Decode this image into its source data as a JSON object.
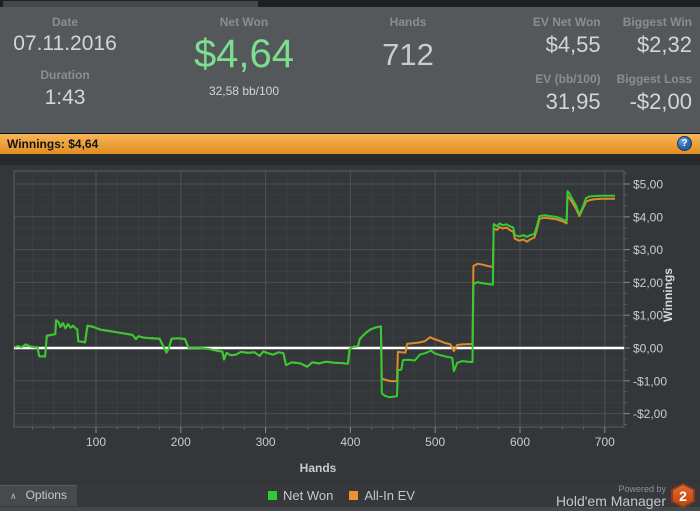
{
  "stats_panel": {
    "date": {
      "label": "Date",
      "value": "07.11.2016"
    },
    "duration": {
      "label": "Duration",
      "value": "1:43"
    },
    "net_won": {
      "label": "Net Won",
      "value": "$4,64",
      "sub": "32,58 bb/100"
    },
    "hands": {
      "label": "Hands",
      "value": "712"
    },
    "ev_net_won": {
      "label": "EV Net Won",
      "value": "$4,55"
    },
    "biggest_win": {
      "label": "Biggest Win",
      "value": "$2,32"
    },
    "ev_bb100": {
      "label": "EV (bb/100)",
      "value": "31,95"
    },
    "biggest_loss": {
      "label": "Biggest Loss",
      "value": "-$2,00"
    }
  },
  "winnings_bar": {
    "label": "Winnings:",
    "value": "$4,64",
    "help_glyph": "?"
  },
  "colors": {
    "accent_orange_bar": "#EDA13C",
    "positive_green_text": "#7CDE8E",
    "chart_background": "#34373A",
    "zero_line": "#FFFFFF",
    "net_won_line": "#33CC33",
    "all_in_ev_line": "#E08A28"
  },
  "chart_data": {
    "type": "line",
    "title": "Winnings: $4,64",
    "xlabel": "Hands",
    "ylabel": "Winnings",
    "xlim": [
      0,
      721
    ],
    "ylim": [
      -2.4,
      5.4
    ],
    "grid": true,
    "zero_line": true,
    "legend_position": "bottom",
    "x_ticks": [
      {
        "value": 100,
        "label": "100"
      },
      {
        "value": 200,
        "label": "200"
      },
      {
        "value": 300,
        "label": "300"
      },
      {
        "value": 400,
        "label": "400"
      },
      {
        "value": 500,
        "label": "500"
      },
      {
        "value": 600,
        "label": "600"
      },
      {
        "value": 700,
        "label": "700"
      }
    ],
    "y_ticks": [
      {
        "value": 5,
        "label": "$5,00"
      },
      {
        "value": 4,
        "label": "$4,00"
      },
      {
        "value": 3,
        "label": "$3,00"
      },
      {
        "value": 2,
        "label": "$2,00"
      },
      {
        "value": 1,
        "label": "$1,00"
      },
      {
        "value": 0,
        "label": "$0,00"
      },
      {
        "value": -1,
        "label": "-$1,00"
      },
      {
        "value": -2,
        "label": "-$2,00"
      }
    ],
    "series": [
      {
        "name": "All-In EV",
        "color": "#E08A28",
        "points": [
          [
            4,
            0.02
          ],
          [
            8,
            0.06
          ],
          [
            12,
            0.02
          ],
          [
            17,
            0.11
          ],
          [
            22,
            0.05
          ],
          [
            28,
            0.02
          ],
          [
            31,
            0.02
          ],
          [
            33,
            -0.25
          ],
          [
            40,
            -0.26
          ],
          [
            42,
            0.37
          ],
          [
            47,
            0.4
          ],
          [
            52,
            0.42
          ],
          [
            53,
            0.85
          ],
          [
            56,
            0.78
          ],
          [
            58,
            0.64
          ],
          [
            61,
            0.76
          ],
          [
            64,
            0.6
          ],
          [
            67,
            0.73
          ],
          [
            70,
            0.62
          ],
          [
            73,
            0.68
          ],
          [
            76,
            0.6
          ],
          [
            78,
            0.57
          ],
          [
            79,
            0.21
          ],
          [
            87,
            0.17
          ],
          [
            90,
            0.68
          ],
          [
            97,
            0.64
          ],
          [
            105,
            0.56
          ],
          [
            115,
            0.52
          ],
          [
            125,
            0.48
          ],
          [
            134,
            0.44
          ],
          [
            143,
            0.4
          ],
          [
            147,
            0.27
          ],
          [
            150,
            0.36
          ],
          [
            157,
            0.31
          ],
          [
            166,
            0.3
          ],
          [
            175,
            0.28
          ],
          [
            180,
            0.02
          ],
          [
            183,
            -0.14
          ],
          [
            186,
            0
          ],
          [
            189,
            0.28
          ],
          [
            197,
            0.3
          ],
          [
            205,
            0.27
          ],
          [
            209,
            0.01
          ],
          [
            220,
            0.01
          ],
          [
            232,
            -0.02
          ],
          [
            242,
            -0.08
          ],
          [
            249,
            -0.11
          ],
          [
            251,
            -0.35
          ],
          [
            254,
            -0.15
          ],
          [
            259,
            -0.22
          ],
          [
            265,
            -0.2
          ],
          [
            271,
            -0.12
          ],
          [
            279,
            -0.15
          ],
          [
            287,
            -0.13
          ],
          [
            293,
            -0.24
          ],
          [
            297,
            -0.11
          ],
          [
            303,
            -0.16
          ],
          [
            309,
            -0.2
          ],
          [
            315,
            -0.13
          ],
          [
            321,
            -0.16
          ],
          [
            324,
            -0.52
          ],
          [
            331,
            -0.44
          ],
          [
            341,
            -0.47
          ],
          [
            349,
            -0.57
          ],
          [
            355,
            -0.44
          ],
          [
            363,
            -0.47
          ],
          [
            371,
            -0.42
          ],
          [
            381,
            -0.45
          ],
          [
            391,
            -0.46
          ],
          [
            397,
            -0.48
          ],
          [
            399,
            -0.02
          ],
          [
            404,
            0.04
          ],
          [
            409,
            0.05
          ],
          [
            411,
            0.27
          ],
          [
            415,
            0.38
          ],
          [
            419,
            0.48
          ],
          [
            424,
            0.57
          ],
          [
            429,
            0.62
          ],
          [
            434,
            0.65
          ],
          [
            436,
            0.66
          ],
          [
            437,
            -0.93
          ],
          [
            442,
            -0.98
          ],
          [
            448,
            -1.01
          ],
          [
            455,
            -1.01
          ],
          [
            456,
            -0.12
          ],
          [
            460,
            -0.13
          ],
          [
            465,
            -0.14
          ],
          [
            467,
            0.13
          ],
          [
            475,
            0.15
          ],
          [
            482,
            0.17
          ],
          [
            488,
            0.21
          ],
          [
            494,
            0.33
          ],
          [
            498,
            0.28
          ],
          [
            504,
            0.23
          ],
          [
            511,
            0.16
          ],
          [
            518,
            0.11
          ],
          [
            522,
            -0.09
          ],
          [
            526,
            0.09
          ],
          [
            532,
            0.11
          ],
          [
            539,
            0.12
          ],
          [
            544,
            0.12
          ],
          [
            545,
            2.5
          ],
          [
            550,
            2.57
          ],
          [
            556,
            2.54
          ],
          [
            562,
            2.5
          ],
          [
            568,
            2.47
          ],
          [
            569,
            3.64
          ],
          [
            573,
            3.6
          ],
          [
            576,
            3.69
          ],
          [
            580,
            3.64
          ],
          [
            584,
            3.67
          ],
          [
            589,
            3.58
          ],
          [
            592,
            3.55
          ],
          [
            594,
            3.33
          ],
          [
            599,
            3.27
          ],
          [
            604,
            3.31
          ],
          [
            608,
            3.24
          ],
          [
            612,
            3.31
          ],
          [
            617,
            3.37
          ],
          [
            620,
            3.63
          ],
          [
            623,
            3.94
          ],
          [
            629,
            3.97
          ],
          [
            635,
            3.95
          ],
          [
            642,
            3.93
          ],
          [
            648,
            3.88
          ],
          [
            652,
            3.84
          ],
          [
            655,
            3.8
          ],
          [
            656,
            4.64
          ],
          [
            658,
            4.58
          ],
          [
            662,
            4.42
          ],
          [
            666,
            4.25
          ],
          [
            670,
            4.02
          ],
          [
            674,
            4.25
          ],
          [
            678,
            4.46
          ],
          [
            682,
            4.51
          ],
          [
            687,
            4.53
          ],
          [
            695,
            4.55
          ],
          [
            712,
            4.55
          ]
        ]
      },
      {
        "name": "Net Won",
        "color": "#33CC33",
        "points": [
          [
            4,
            0.02
          ],
          [
            8,
            0.06
          ],
          [
            12,
            0.02
          ],
          [
            17,
            0.11
          ],
          [
            22,
            0.05
          ],
          [
            28,
            0.02
          ],
          [
            31,
            0.02
          ],
          [
            33,
            -0.25
          ],
          [
            40,
            -0.26
          ],
          [
            42,
            0.37
          ],
          [
            47,
            0.4
          ],
          [
            52,
            0.42
          ],
          [
            53,
            0.85
          ],
          [
            56,
            0.78
          ],
          [
            58,
            0.64
          ],
          [
            61,
            0.76
          ],
          [
            64,
            0.6
          ],
          [
            67,
            0.73
          ],
          [
            70,
            0.62
          ],
          [
            73,
            0.68
          ],
          [
            76,
            0.6
          ],
          [
            78,
            0.57
          ],
          [
            79,
            0.21
          ],
          [
            87,
            0.17
          ],
          [
            90,
            0.68
          ],
          [
            97,
            0.64
          ],
          [
            105,
            0.56
          ],
          [
            115,
            0.52
          ],
          [
            125,
            0.48
          ],
          [
            134,
            0.44
          ],
          [
            143,
            0.4
          ],
          [
            147,
            0.27
          ],
          [
            150,
            0.36
          ],
          [
            157,
            0.31
          ],
          [
            166,
            0.3
          ],
          [
            175,
            0.28
          ],
          [
            180,
            0.02
          ],
          [
            183,
            -0.14
          ],
          [
            186,
            0
          ],
          [
            189,
            0.28
          ],
          [
            197,
            0.3
          ],
          [
            205,
            0.27
          ],
          [
            209,
            0.01
          ],
          [
            220,
            0.01
          ],
          [
            232,
            -0.02
          ],
          [
            242,
            -0.08
          ],
          [
            249,
            -0.11
          ],
          [
            251,
            -0.35
          ],
          [
            254,
            -0.15
          ],
          [
            259,
            -0.22
          ],
          [
            265,
            -0.2
          ],
          [
            271,
            -0.12
          ],
          [
            279,
            -0.15
          ],
          [
            287,
            -0.13
          ],
          [
            293,
            -0.24
          ],
          [
            297,
            -0.11
          ],
          [
            303,
            -0.16
          ],
          [
            309,
            -0.2
          ],
          [
            315,
            -0.13
          ],
          [
            321,
            -0.16
          ],
          [
            324,
            -0.52
          ],
          [
            331,
            -0.44
          ],
          [
            341,
            -0.47
          ],
          [
            349,
            -0.57
          ],
          [
            355,
            -0.44
          ],
          [
            363,
            -0.47
          ],
          [
            371,
            -0.42
          ],
          [
            381,
            -0.45
          ],
          [
            391,
            -0.46
          ],
          [
            397,
            -0.48
          ],
          [
            399,
            -0.02
          ],
          [
            404,
            0.04
          ],
          [
            409,
            0.05
          ],
          [
            411,
            0.27
          ],
          [
            415,
            0.38
          ],
          [
            419,
            0.48
          ],
          [
            424,
            0.57
          ],
          [
            429,
            0.62
          ],
          [
            434,
            0.65
          ],
          [
            436,
            0.66
          ],
          [
            437,
            -1.38
          ],
          [
            441,
            -1.46
          ],
          [
            446,
            -1.5
          ],
          [
            452,
            -1.48
          ],
          [
            455,
            -1.47
          ],
          [
            456,
            -0.68
          ],
          [
            460,
            -0.66
          ],
          [
            462,
            -0.37
          ],
          [
            469,
            -0.36
          ],
          [
            476,
            -0.38
          ],
          [
            482,
            -0.2
          ],
          [
            489,
            -0.15
          ],
          [
            495,
            -0.08
          ],
          [
            499,
            -0.16
          ],
          [
            505,
            -0.21
          ],
          [
            512,
            -0.26
          ],
          [
            520,
            -0.3
          ],
          [
            522,
            -0.71
          ],
          [
            526,
            -0.45
          ],
          [
            532,
            -0.4
          ],
          [
            539,
            -0.42
          ],
          [
            544,
            -0.43
          ],
          [
            545,
            1.95
          ],
          [
            550,
            2.01
          ],
          [
            556,
            1.97
          ],
          [
            562,
            1.95
          ],
          [
            568,
            1.93
          ],
          [
            569,
            3.78
          ],
          [
            573,
            3.71
          ],
          [
            576,
            3.8
          ],
          [
            580,
            3.74
          ],
          [
            584,
            3.77
          ],
          [
            589,
            3.7
          ],
          [
            592,
            3.68
          ],
          [
            594,
            3.44
          ],
          [
            599,
            3.4
          ],
          [
            604,
            3.44
          ],
          [
            608,
            3.39
          ],
          [
            612,
            3.44
          ],
          [
            617,
            3.48
          ],
          [
            620,
            3.73
          ],
          [
            623,
            4.02
          ],
          [
            629,
            4.05
          ],
          [
            635,
            4.02
          ],
          [
            642,
            4
          ],
          [
            648,
            3.95
          ],
          [
            652,
            3.9
          ],
          [
            655,
            3.87
          ],
          [
            656,
            4.78
          ],
          [
            658,
            4.72
          ],
          [
            662,
            4.52
          ],
          [
            666,
            4.35
          ],
          [
            670,
            4.07
          ],
          [
            674,
            4.3
          ],
          [
            678,
            4.57
          ],
          [
            682,
            4.62
          ],
          [
            687,
            4.63
          ],
          [
            695,
            4.64
          ],
          [
            712,
            4.64
          ]
        ]
      }
    ]
  },
  "bottom_bar": {
    "options_label": "Options",
    "chevron_glyph": "∧",
    "legend": [
      {
        "label": "Net Won",
        "color": "#2ECC2E"
      },
      {
        "label": "All-In EV",
        "color": "#F0912F"
      }
    ],
    "powered_by": "Powered by",
    "brand": "Hold'em Manager",
    "badge": "2"
  }
}
